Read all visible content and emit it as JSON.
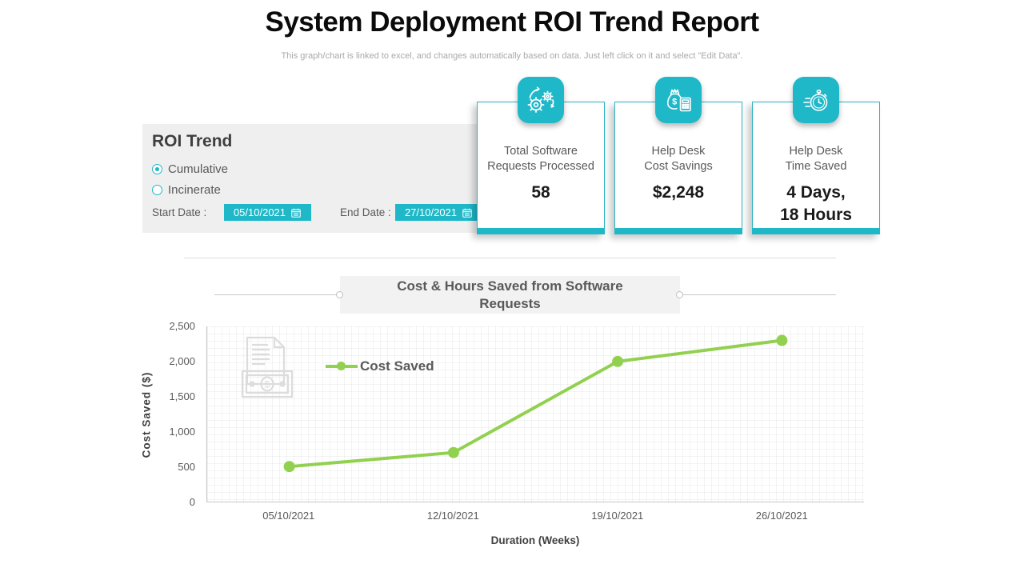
{
  "page": {
    "title": "System Deployment ROI Trend Report",
    "subtitle": "This graph/chart is linked to excel, and changes automatically based on data. Just left click on it and select \"Edit Data\"."
  },
  "colors": {
    "accent_teal": "#1fb8c8",
    "line_green": "#92d050",
    "panel_gray": "#efefef",
    "text_dark": "#404040",
    "text_gray": "#595959"
  },
  "roi_panel": {
    "heading": "ROI Trend",
    "options": [
      {
        "label": "Cumulative",
        "selected": true
      },
      {
        "label": "Incinerate",
        "selected": false
      }
    ],
    "start_date_label": "Start Date :",
    "start_date_value": "05/10/2021",
    "end_date_label": "End Date :",
    "end_date_value": "27/10/2021"
  },
  "kpi_cards": [
    {
      "icon": "gears-icon",
      "label_line1": "Total Software",
      "label_line2": "Requests Processed",
      "value": "58"
    },
    {
      "icon": "money-bag-calculator-icon",
      "label_line1": "Help Desk",
      "label_line2": "Cost Savings",
      "value": "$2,248"
    },
    {
      "icon": "stopwatch-icon",
      "label_line1": "Help Desk",
      "label_line2": "Time Saved",
      "value_line1": "4 Days,",
      "value_line2": "18 Hours"
    }
  ],
  "chart_data": {
    "type": "line",
    "title": "Cost & Hours Saved from Software Requests",
    "title_line1": "Cost & Hours Saved from Software",
    "title_line2": "Requests",
    "xlabel": "Duration (Weeks)",
    "ylabel": "Cost Saved ($)",
    "categories": [
      "05/10/2021",
      "12/10/2021",
      "19/10/2021",
      "26/10/2021"
    ],
    "series": [
      {
        "name": "Cost Saved",
        "values": [
          500,
          700,
          2000,
          2300
        ],
        "color": "#92d050"
      }
    ],
    "ylim": [
      0,
      2500
    ],
    "ytick_step": 500,
    "yticks": [
      "0",
      "500",
      "1,000",
      "1,500",
      "2,000",
      "2,500"
    ],
    "grid": true,
    "legend_position": "inside-top-left"
  }
}
